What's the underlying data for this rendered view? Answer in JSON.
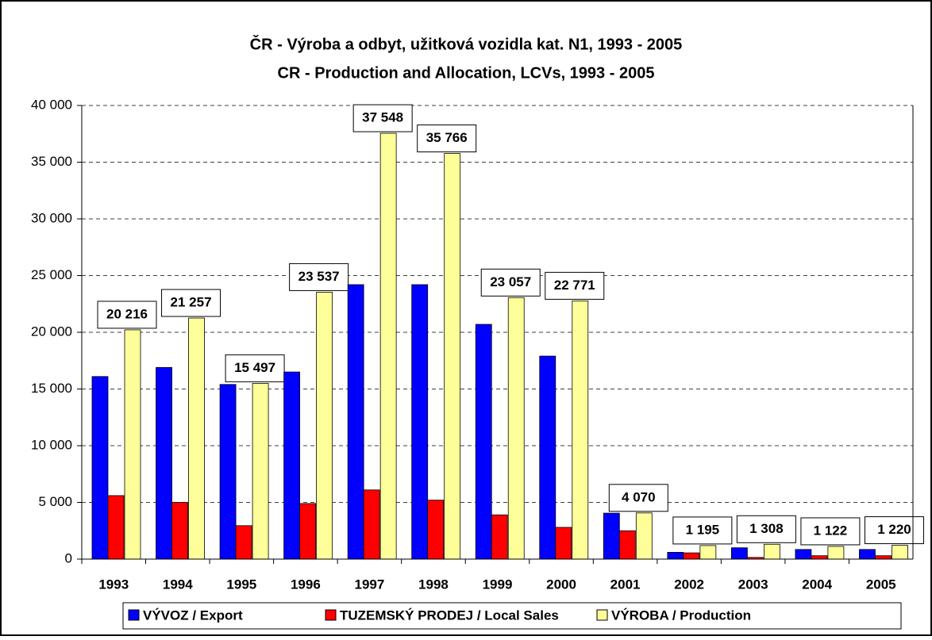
{
  "chart_data": {
    "type": "bar",
    "title": "ČR - Výroba a odbyt, užitková vozidla kat. N1, 1993 - 2005",
    "subtitle": "CR - Production and Allocation, LCVs, 1993 - 2005",
    "categories": [
      "1993",
      "1994",
      "1995",
      "1996",
      "1997",
      "1998",
      "1999",
      "2000",
      "2001",
      "2002",
      "2003",
      "2004",
      "2005"
    ],
    "series": [
      {
        "name": "VÝVOZ / Export",
        "color": "#0000ff",
        "values": [
          16100,
          16900,
          15400,
          16500,
          24200,
          24200,
          20700,
          17900,
          4050,
          600,
          1000,
          850,
          850
        ]
      },
      {
        "name": "TUZEMSKÝ PRODEJ / Local Sales",
        "color": "#ff0000",
        "values": [
          5600,
          5000,
          2950,
          4900,
          6100,
          5200,
          3900,
          2800,
          2500,
          550,
          150,
          300,
          300
        ]
      },
      {
        "name": "VÝROBA / Production",
        "color": "#ffff99",
        "values": [
          20216,
          21257,
          15497,
          23537,
          37548,
          35766,
          23057,
          22771,
          4070,
          1195,
          1308,
          1122,
          1220
        ],
        "value_labels": [
          "20 216",
          "21 257",
          "15 497",
          "23 537",
          "37 548",
          "35 766",
          "23 057",
          "22 771",
          "4 070",
          "1 195",
          "1 308",
          "1 122",
          "1 220"
        ]
      }
    ],
    "ylim": [
      0,
      40000
    ],
    "yticks": [
      0,
      {
        "value": 5000,
        "label": "5 000"
      },
      {
        "value": 10000,
        "label": "10 000"
      },
      {
        "value": 15000,
        "label": "15 000"
      },
      {
        "value": 20000,
        "label": "20 000"
      },
      {
        "value": 25000,
        "label": "25 000"
      },
      {
        "value": 30000,
        "label": "30 000"
      },
      {
        "value": 35000,
        "label": "35 000"
      },
      {
        "value": 40000,
        "label": "40 000"
      }
    ],
    "grid": true,
    "legend": "bottom"
  }
}
